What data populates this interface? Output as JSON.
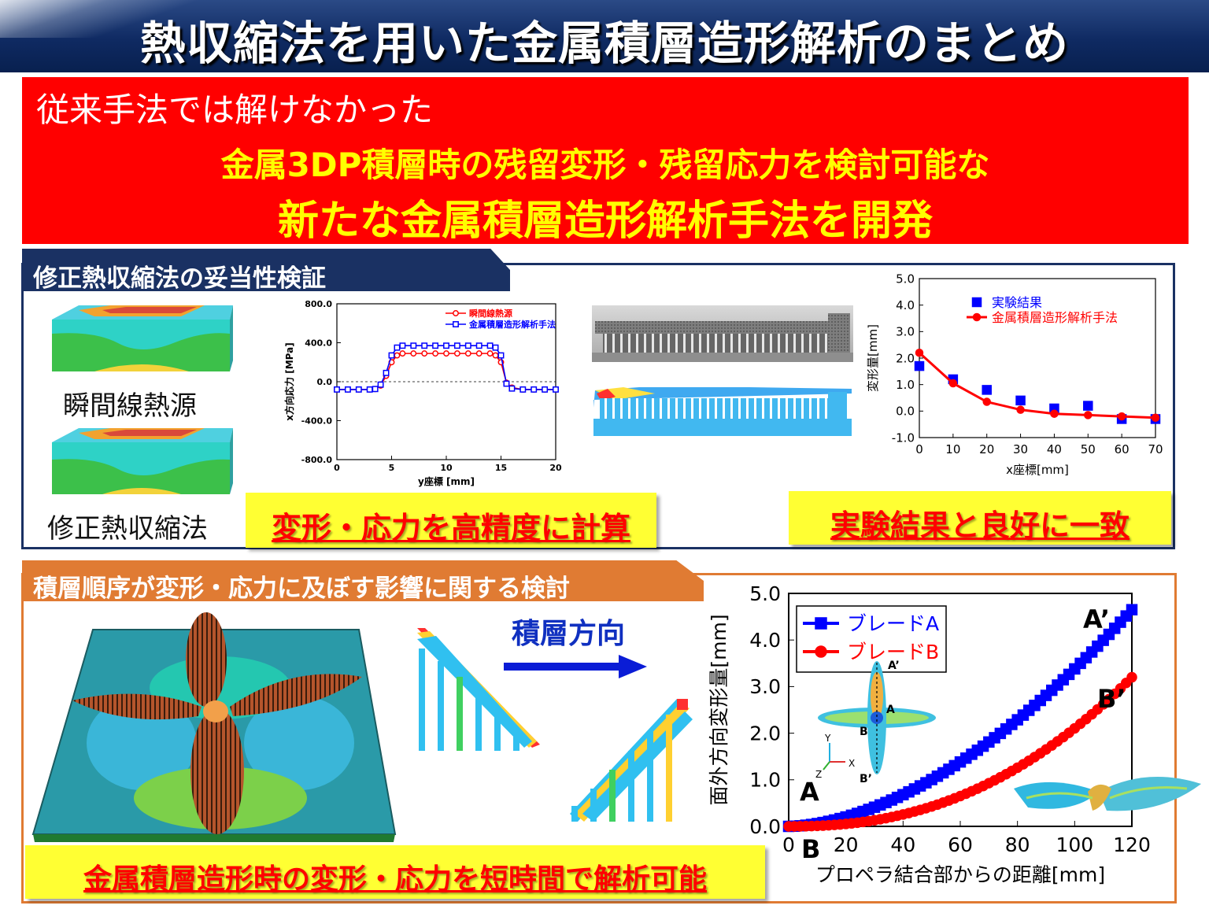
{
  "title": "熱収縮法を用いた金属積層造形解析のまとめ",
  "banner": {
    "intro": "従来手法では解けなかった",
    "headline_1": "金属3DP積層時の残留変形・残留応力を検討可能な",
    "headline_2": "新たな金属積層造形解析手法を開発"
  },
  "section1": {
    "title": "修正熱収縮法の妥当性検証",
    "model_label_1": "瞬間線熱源",
    "model_label_2": "修正熱収縮法",
    "callout_left": "変形・応力を高精度に計算",
    "callout_right": "実験結果と良好に一致"
  },
  "section2": {
    "title": "積層順序が変形・応力に及ぼす影響に関する検討",
    "direction_label": "積層方向",
    "callout": "金属積層造形時の変形・応力を短時間で解析可能"
  },
  "colors": {
    "title_bg": "#0f2a62",
    "banner_red": "#ff0000",
    "headline_yellow": "#ffff00",
    "section1_navy": "#1a3163",
    "section2_orange": "#e07b33",
    "series_blue": "#0000ff",
    "series_red": "#ff0000"
  },
  "chart_data": [
    {
      "type": "line",
      "xlabel": "y座標 [mm]",
      "ylabel": "x方向応力 [MPa]",
      "xlim": [
        0,
        20
      ],
      "ylim": [
        -800,
        800
      ],
      "xticks": [
        0,
        5,
        10,
        15,
        20
      ],
      "yticks": [
        800,
        400,
        0,
        -400,
        -800
      ],
      "ytick_labels": [
        "800.0",
        "400.0",
        "0.0",
        "-400.0",
        "-800.0"
      ],
      "legend": "top-right",
      "grid": false,
      "series": [
        {
          "name": "瞬間線熱源",
          "marker": "circle",
          "color": "#ff0000",
          "x": [
            0,
            1,
            2,
            3,
            3.5,
            4,
            4.5,
            5,
            5.5,
            6,
            7,
            8,
            9,
            10,
            11,
            12,
            13,
            14,
            14.5,
            15,
            15.5,
            16,
            17,
            18,
            19,
            20
          ],
          "y": [
            -80,
            -80,
            -80,
            -80,
            -75,
            -40,
            60,
            200,
            270,
            290,
            290,
            290,
            290,
            290,
            290,
            290,
            290,
            290,
            270,
            200,
            -10,
            -60,
            -80,
            -80,
            -80,
            -80
          ]
        },
        {
          "name": "金属積層造形解析手法",
          "marker": "square",
          "color": "#0000ff",
          "x": [
            0,
            1,
            2,
            3,
            3.5,
            4,
            4.5,
            5,
            5.5,
            6,
            7,
            8,
            9,
            10,
            11,
            12,
            13,
            14,
            14.5,
            15,
            15.5,
            16,
            17,
            18,
            19,
            20
          ],
          "y": [
            -80,
            -80,
            -80,
            -80,
            -75,
            -30,
            90,
            270,
            350,
            370,
            370,
            370,
            370,
            370,
            370,
            370,
            370,
            370,
            350,
            270,
            -20,
            -70,
            -80,
            -80,
            -80,
            -80
          ]
        }
      ]
    },
    {
      "type": "scatter",
      "xlabel": "x座標[mm]",
      "ylabel": "変形量[mm]",
      "xlim": [
        0,
        70
      ],
      "ylim": [
        -1,
        5
      ],
      "xticks": [
        0,
        10,
        20,
        30,
        40,
        50,
        60,
        70
      ],
      "yticks": [
        5,
        4,
        3,
        2,
        1,
        0,
        -1
      ],
      "ytick_labels": [
        "5.0",
        "4.0",
        "3.0",
        "2.0",
        "1.0",
        "0.0",
        "-1.0"
      ],
      "legend": "top-right",
      "grid": false,
      "series": [
        {
          "name": "実験結果",
          "marker": "square",
          "color": "#0000ff",
          "line": false,
          "x": [
            0,
            10,
            20,
            30,
            40,
            50,
            60,
            70
          ],
          "y": [
            1.7,
            1.2,
            0.8,
            0.4,
            0.1,
            0.2,
            -0.3,
            -0.3
          ]
        },
        {
          "name": "金属積層造形解析手法",
          "marker": "circle",
          "color": "#ff0000",
          "line": true,
          "x": [
            0,
            10,
            20,
            30,
            40,
            50,
            60,
            70
          ],
          "y": [
            2.2,
            1.05,
            0.35,
            0.05,
            -0.1,
            -0.15,
            -0.2,
            -0.25
          ]
        }
      ]
    },
    {
      "type": "line",
      "xlabel": "プロペラ結合部からの距離[mm]",
      "ylabel": "面外方向変形量[mm]",
      "xlim": [
        0,
        120
      ],
      "ylim": [
        0,
        5
      ],
      "xticks": [
        0,
        20,
        40,
        60,
        80,
        100,
        120
      ],
      "yticks": [
        5,
        4,
        3,
        2,
        1,
        0
      ],
      "ytick_labels": [
        "5.0",
        "4.0",
        "3.0",
        "2.0",
        "1.0",
        "0.0"
      ],
      "legend": "top-left",
      "grid": false,
      "annotations": [
        "A",
        "B",
        "A’",
        "B’"
      ],
      "series": [
        {
          "name": "ブレードA",
          "marker": "square",
          "color": "#0000ff",
          "curve": "power",
          "y0": 0,
          "y1": 4.65,
          "exponent": 1.75
        },
        {
          "name": "ブレードB",
          "marker": "circle",
          "color": "#ff0000",
          "curve": "power",
          "y0": 0,
          "y1": 3.2,
          "exponent": 2.3
        }
      ],
      "inset_labels": {
        "a_top": "A’",
        "a": "A",
        "b": "B",
        "b_bottom": "B’",
        "axis_y": "Y",
        "axis_x": "X",
        "axis_z": "Z"
      }
    }
  ]
}
